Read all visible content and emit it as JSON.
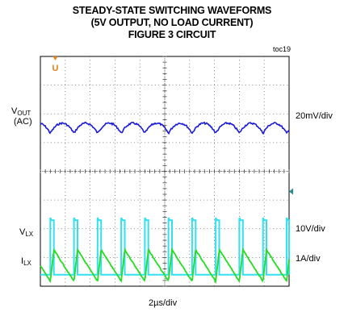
{
  "title_lines": [
    "STEADY-STATE SWITCHING WAVEFORMS",
    "(5V OUTPUT, NO LOAD CURRENT)",
    "FIGURE 3 CIRCUIT"
  ],
  "toc": "toc19",
  "trigger_marker": "U",
  "channels": {
    "vout": {
      "name": "V",
      "sub": "OUT",
      "extra": "(AC)",
      "scale": "20mV/div",
      "color": "#1a1adc"
    },
    "vlx": {
      "name": "V",
      "sub": "LX",
      "scale": "10V/div",
      "color": "#33e0f0"
    },
    "ilx": {
      "name": "I",
      "sub": "LX",
      "scale": "1A/div",
      "color": "#22dd22"
    }
  },
  "xaxis_label": "2µs/div",
  "chart_data": {
    "type": "line",
    "title": "STEADY-STATE SWITCHING WAVEFORMS (5V OUTPUT, NO LOAD CURRENT) FIGURE 3 CIRCUIT",
    "xlabel": "2µs/div",
    "x_divisions": 10,
    "y_divisions": 8,
    "grid": true,
    "switching_period_div": 0.95,
    "series": [
      {
        "name": "VOUT (AC)",
        "scale": "20mV/div",
        "shape": "ripple",
        "ripple_pp_div": 0.35
      },
      {
        "name": "VLX",
        "scale": "10V/div",
        "shape": "pulse",
        "high_div": 1.9,
        "duty": 0.15
      },
      {
        "name": "ILX",
        "scale": "1A/div",
        "shape": "sawtooth",
        "pp_div": 1.1
      }
    ]
  }
}
